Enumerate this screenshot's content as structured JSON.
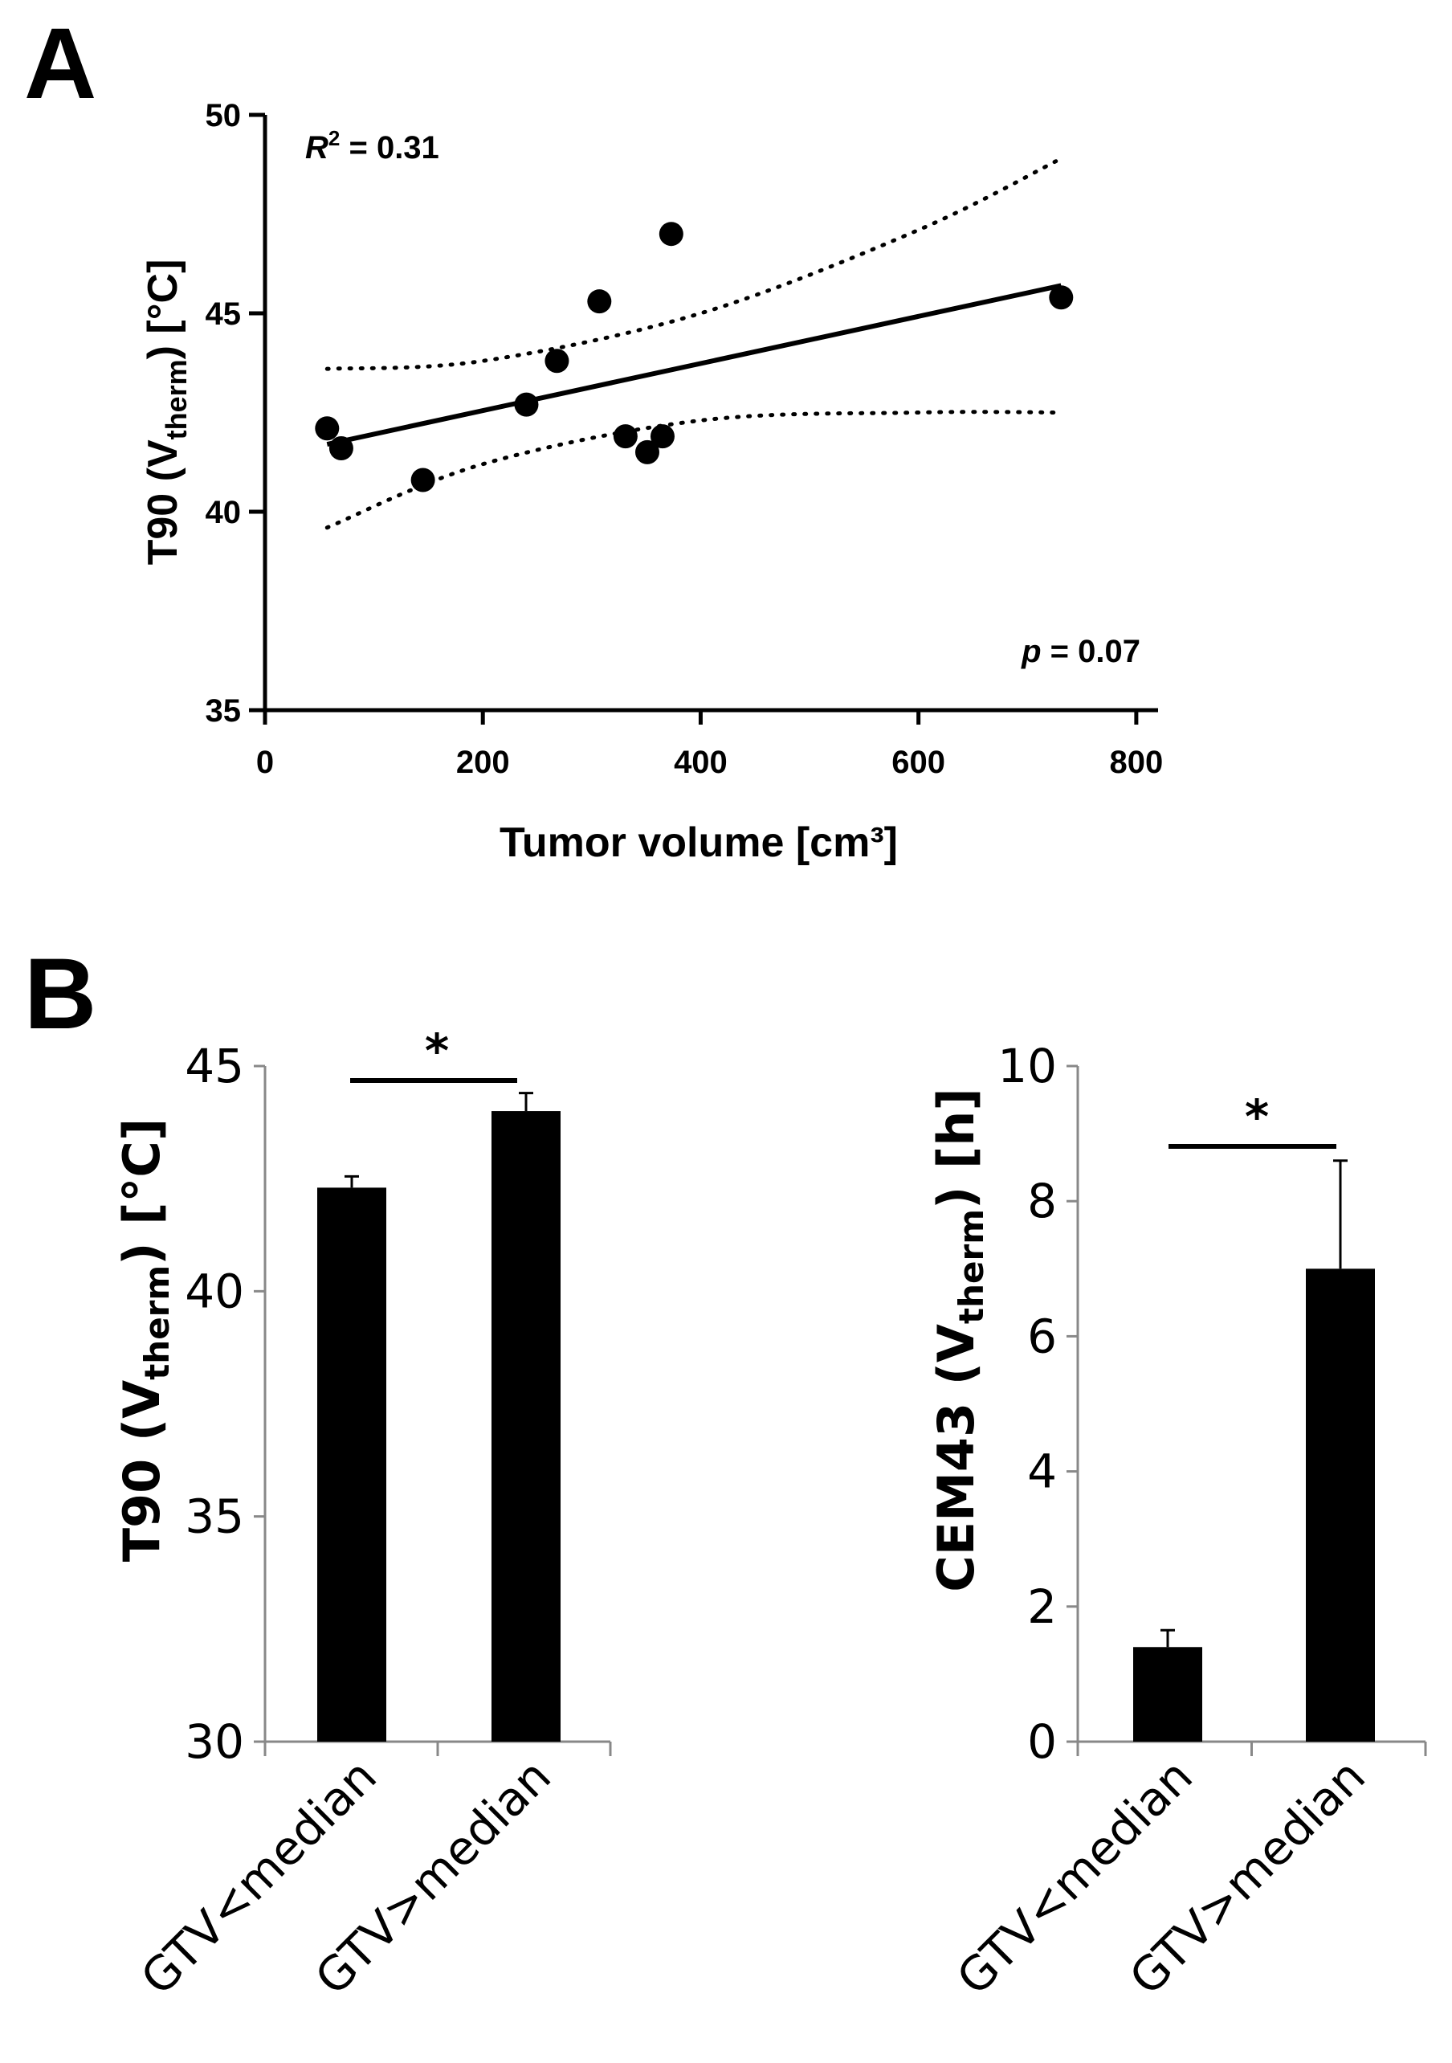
{
  "panels": {
    "a_label": "A",
    "b_label": "B"
  },
  "chart_data": [
    {
      "panel": "A",
      "type": "scatter",
      "xlabel": "Tumor volume [cm³]",
      "ylabel_main": "T90 (V",
      "ylabel_sub": "therm",
      "ylabel_tail": ") [°C]",
      "xlim": [
        0,
        800
      ],
      "ylim": [
        35,
        50
      ],
      "x_ticks": [
        0,
        200,
        400,
        600,
        800
      ],
      "y_ticks": [
        35,
        40,
        45,
        50
      ],
      "points": [
        {
          "x": 57,
          "y": 42.1
        },
        {
          "x": 70,
          "y": 41.6
        },
        {
          "x": 145,
          "y": 40.8
        },
        {
          "x": 240,
          "y": 42.7
        },
        {
          "x": 268,
          "y": 43.8
        },
        {
          "x": 307,
          "y": 45.3
        },
        {
          "x": 331,
          "y": 41.9
        },
        {
          "x": 351,
          "y": 41.5
        },
        {
          "x": 365,
          "y": 41.9
        },
        {
          "x": 373,
          "y": 47.0
        },
        {
          "x": 731,
          "y": 45.4
        }
      ],
      "fit_line": {
        "x": [
          57,
          731
        ],
        "y": [
          41.7,
          45.7
        ]
      },
      "ci_upper": {
        "x": [
          57,
          200,
          400,
          600,
          731
        ],
        "y": [
          43.6,
          43.8,
          45.0,
          47.1,
          48.9
        ]
      },
      "ci_lower": {
        "x": [
          57,
          200,
          400,
          600,
          731
        ],
        "y": [
          39.6,
          41.2,
          42.3,
          42.5,
          42.5
        ]
      },
      "r2_prefix": "R",
      "r2_sup": "2",
      "r2_text": " = 0.31",
      "p_prefix": "p",
      "p_text": " = 0.07"
    },
    {
      "panel": "B-left",
      "type": "bar",
      "categories": [
        "GTV<median",
        "GTV>median"
      ],
      "values": [
        42.3,
        44.0
      ],
      "errors": [
        0.25,
        0.4
      ],
      "ylim": [
        30,
        45
      ],
      "y_ticks": [
        30,
        35,
        40,
        45
      ],
      "ylabel_main": "T90 (V",
      "ylabel_sub": "therm",
      "ylabel_tail": ")  [°C]",
      "significance": "*"
    },
    {
      "panel": "B-right",
      "type": "bar",
      "categories": [
        "GTV<median",
        "GTV>median"
      ],
      "values": [
        1.4,
        7.0
      ],
      "errors": [
        0.25,
        1.6
      ],
      "ylim": [
        0,
        10
      ],
      "y_ticks": [
        0,
        2,
        4,
        6,
        8,
        10
      ],
      "ylabel_main": "CEM43 (V",
      "ylabel_sub": "therm",
      "ylabel_tail": ")  [h]",
      "significance": "*"
    }
  ]
}
